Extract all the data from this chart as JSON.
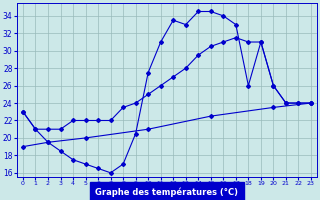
{
  "title": "Graphe des températures (°C)",
  "line1_x": [
    0,
    1,
    2,
    3,
    4,
    5,
    6,
    7,
    8,
    9,
    10,
    11,
    12,
    13,
    14,
    15,
    16,
    17,
    18,
    19,
    20,
    21,
    22,
    23
  ],
  "line1_y": [
    23,
    21,
    19.5,
    18.5,
    17.5,
    17,
    16.5,
    16,
    17,
    20.5,
    27.5,
    31,
    33.5,
    33,
    34.5,
    34.5,
    34,
    33,
    26,
    31,
    26,
    24,
    24,
    24
  ],
  "line2_x": [
    0,
    1,
    2,
    3,
    4,
    5,
    6,
    7,
    8,
    9,
    10,
    11,
    12,
    13,
    14,
    15,
    16,
    17,
    18,
    19,
    20,
    21,
    22,
    23
  ],
  "line2_y": [
    23,
    21,
    21,
    21,
    22,
    22,
    22,
    22,
    23.5,
    24,
    25,
    26,
    27,
    28,
    29.5,
    30.5,
    31,
    31.5,
    31,
    31,
    26,
    24,
    24,
    24
  ],
  "line3_x": [
    0,
    2,
    5,
    10,
    15,
    20,
    23
  ],
  "line3_y": [
    19,
    19.5,
    20,
    21,
    22.5,
    23.5,
    24
  ],
  "xlim": [
    -0.5,
    23.5
  ],
  "ylim": [
    15.5,
    35.5
  ],
  "yticks": [
    16,
    18,
    20,
    22,
    24,
    26,
    28,
    30,
    32,
    34
  ],
  "xtick_labels": [
    "0",
    "1",
    "2",
    "3",
    "4",
    "5",
    "6",
    "7",
    "8",
    "9",
    "10",
    "11",
    "12",
    "13",
    "14",
    "15",
    "16",
    "17",
    "18",
    "19",
    "20",
    "21",
    "22",
    "23"
  ],
  "xtick_vals": [
    0,
    1,
    2,
    3,
    4,
    5,
    6,
    7,
    8,
    9,
    10,
    11,
    12,
    13,
    14,
    15,
    16,
    17,
    18,
    19,
    20,
    21,
    22,
    23
  ],
  "line_color": "#0000cc",
  "bg_color": "#cce8e8",
  "grid_color": "#99bbbb",
  "xlabel_bg": "#0000cc",
  "xlabel_fg": "#ffffff"
}
